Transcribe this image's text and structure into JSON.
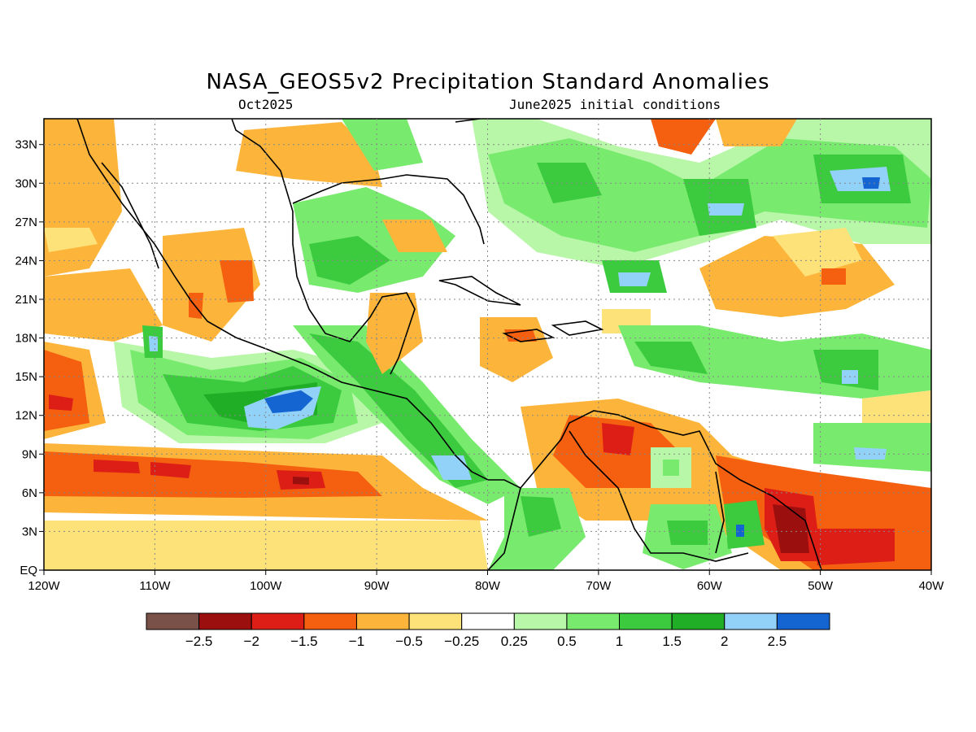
{
  "title": "NASA_GEOS5v2 Precipitation Standard Anomalies",
  "subtitle_left": "Oct2025",
  "subtitle_right": "June2025 initial conditions",
  "map": {
    "lon_labels": [
      "120W",
      "110W",
      "100W",
      "90W",
      "80W",
      "70W",
      "60W",
      "50W",
      "40W"
    ],
    "lat_labels": [
      "33N",
      "30N",
      "27N",
      "24N",
      "21N",
      "18N",
      "15N",
      "12N",
      "9N",
      "6N",
      "3N",
      "EQ"
    ],
    "lon_range": [
      -120,
      -40
    ],
    "lat_range": [
      0,
      35
    ],
    "grid": "dotted",
    "land_border_color": "#000000"
  },
  "colorbar": {
    "colors": [
      "#7a5148",
      "#9c0f0f",
      "#dc1e16",
      "#f45f10",
      "#fcb53a",
      "#fde27a",
      "#ffffff",
      "#b8f6a8",
      "#78ea6e",
      "#3ccb3e",
      "#1fae25",
      "#93d2f8",
      "#1464d2"
    ],
    "labels": [
      "−2.5",
      "−2",
      "−1.5",
      "−1",
      "−0.5",
      "−0.25",
      "0.25",
      "0.5",
      "1",
      "1.5",
      "2",
      "2.5"
    ]
  },
  "legend": {
    "dry_colors": [
      "#7a5148",
      "#9c0f0f",
      "#dc1e16",
      "#f45f10",
      "#fcb53a",
      "#fde27a"
    ],
    "wet_colors": [
      "#b8f6a8",
      "#78ea6e",
      "#3ccb3e",
      "#1fae25",
      "#93d2f8",
      "#1464d2"
    ]
  }
}
